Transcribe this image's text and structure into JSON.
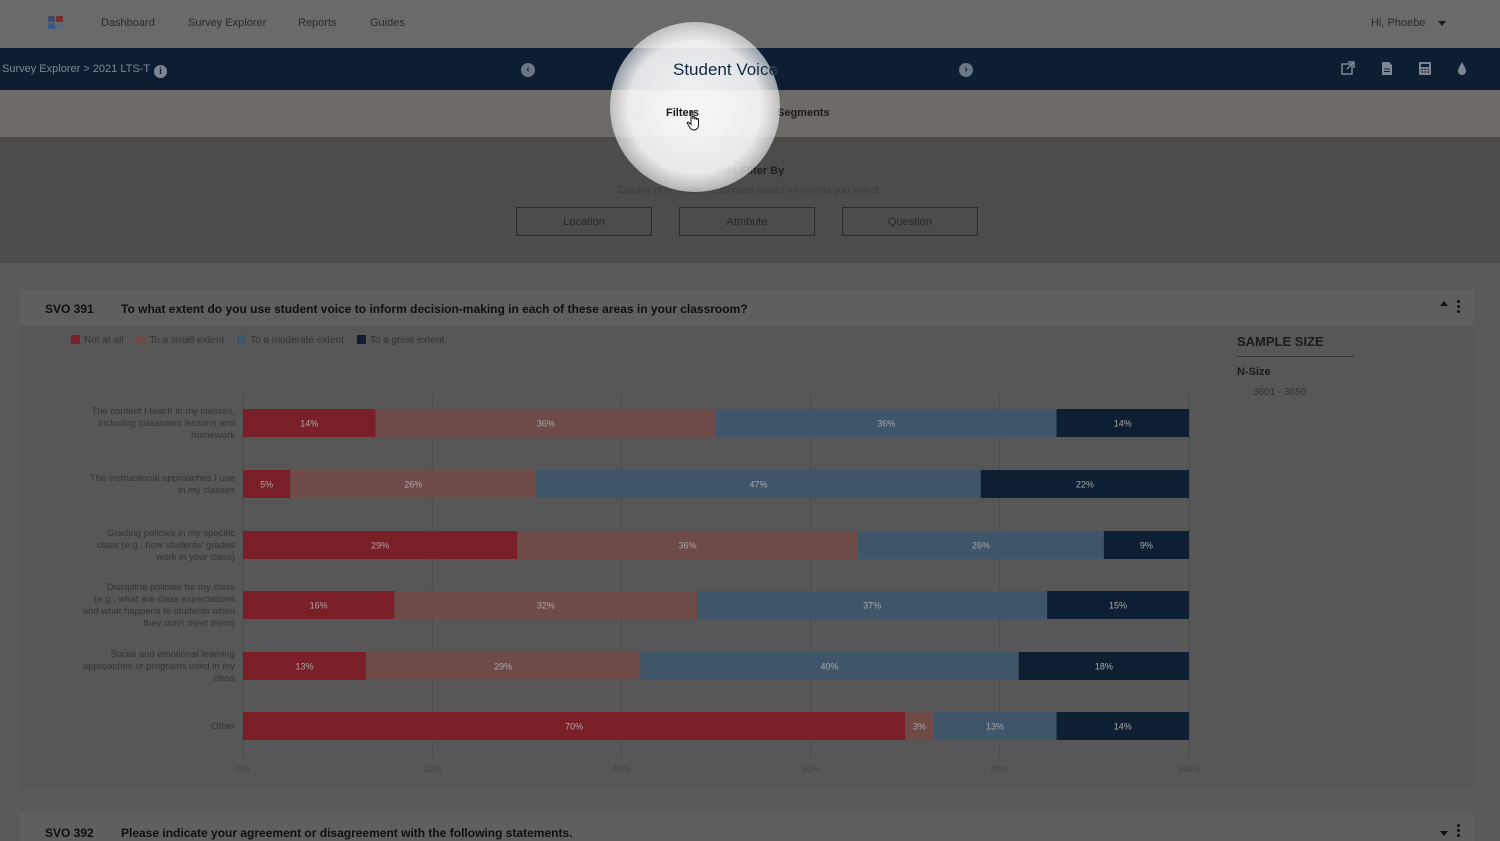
{
  "nav": {
    "links": [
      "Dashboard",
      "Survey Explorer",
      "Reports",
      "Guides"
    ],
    "user": "Hi, Phoebe"
  },
  "titlebar": {
    "breadcrumb": "Survey Explorer > 2021 LTS-T",
    "title": "Student Voice",
    "icons": [
      "external-link-icon",
      "document-icon",
      "calculator-icon",
      "water-drop-icon"
    ]
  },
  "tabs": [
    "Filters",
    "Segments"
  ],
  "filters": {
    "title": "Add Filter By",
    "subtitle": "Display only certain responses based on criteria you select.",
    "buttons": [
      "Location",
      "Attribute",
      "Question"
    ]
  },
  "question1": {
    "code": "SVO 391",
    "text": "To what extent do you use student voice to inform decision-making in each of these areas in your classroom?"
  },
  "sample": {
    "title": "SAMPLE SIZE",
    "nsize_label": "N-Size",
    "nsize_value": "3601 - 3650"
  },
  "question2": {
    "code": "SVO 392",
    "text": "Please indicate your agreement or disagreement with the following statements."
  },
  "colors": {
    "not_at_all": "#7a1f27",
    "small": "#6e4a49",
    "moderate": "#3f5569",
    "great": "#0f1f33"
  },
  "chart_data": {
    "type": "bar",
    "orientation": "horizontal-stacked-percent",
    "categories": [
      "The content I teach in my classes, including classroom lessons and homework",
      "The instructional approaches I use in my classes",
      "Grading policies in my specific class (e.g., how students' grades work in your class)",
      "Discipline policies for my class (e.g., what are class expectations and what happens to students when they don't meet them)",
      "Social and emotional learning approaches or programs used in my class",
      "Other"
    ],
    "series": [
      {
        "name": "Not at all",
        "values": [
          14,
          5,
          29,
          16,
          13,
          70
        ]
      },
      {
        "name": "To a small extent",
        "values": [
          36,
          26,
          36,
          32,
          29,
          3
        ]
      },
      {
        "name": "To a moderate extent",
        "values": [
          36,
          47,
          26,
          37,
          40,
          13
        ]
      },
      {
        "name": "To a great extent",
        "values": [
          14,
          22,
          9,
          15,
          18,
          14
        ]
      }
    ],
    "xticks": [
      "0%",
      "20%",
      "40%",
      "60%",
      "80%",
      "100%"
    ],
    "xlim": [
      0,
      100
    ],
    "grid": true,
    "legend": "top-left"
  }
}
